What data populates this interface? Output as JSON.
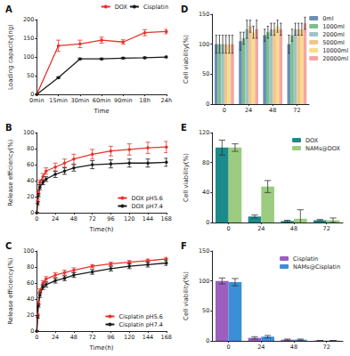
{
  "chart_data": [
    {
      "title": "A",
      "type": "line",
      "x_label": "Time",
      "y_label": "Loading capacity(ng)",
      "categories": [
        "0min",
        "15min",
        "30min",
        "60min",
        "90min",
        "18h",
        "24h"
      ],
      "ylim": [
        0,
        200
      ],
      "yticks": [
        0,
        50,
        100,
        150,
        200
      ],
      "grid": false,
      "legend": "upper right",
      "series": [
        {
          "name": "DOX",
          "color": "#e8322c",
          "marker": "circle",
          "line_style": "solid",
          "values": [
            0,
            130,
            135,
            145,
            140,
            165,
            168
          ],
          "errors": [
            0,
            15,
            10,
            8,
            6,
            8,
            6
          ]
        },
        {
          "name": "Cisplatin",
          "color": "#1a1a1a",
          "marker": "circle",
          "line_style": "solid",
          "values": [
            0,
            45,
            95,
            95,
            97,
            98,
            100
          ],
          "errors": [
            0,
            2,
            2,
            2,
            2,
            2,
            2
          ]
        }
      ]
    },
    {
      "title": "D",
      "type": "bar",
      "y_label": "Cell viability(%)",
      "categories": [
        "0",
        "24",
        "48",
        "72"
      ],
      "ylim": [
        0,
        150
      ],
      "yticks": [
        0,
        50,
        100,
        150
      ],
      "grid": false,
      "legend": "right",
      "series": [
        {
          "name": "0ml",
          "color": "#6a8fb5",
          "values": [
            100,
            105,
            115,
            100
          ],
          "errors": [
            15,
            15,
            10,
            15
          ]
        },
        {
          "name": "1000ml",
          "color": "#7cbf8a",
          "values": [
            100,
            110,
            120,
            115
          ],
          "errors": [
            15,
            10,
            10,
            10
          ]
        },
        {
          "name": "2000ml",
          "color": "#9fc3c6",
          "values": [
            100,
            125,
            125,
            125
          ],
          "errors": [
            15,
            15,
            10,
            10
          ]
        },
        {
          "name": "5000ml",
          "color": "#f2c48d",
          "values": [
            100,
            130,
            125,
            125
          ],
          "errors": [
            15,
            10,
            10,
            10
          ]
        },
        {
          "name": "10000ml",
          "color": "#f7dc8a",
          "values": [
            100,
            120,
            130,
            125
          ],
          "errors": [
            15,
            10,
            10,
            10
          ]
        },
        {
          "name": "20000ml",
          "color": "#f4a6a6",
          "values": [
            100,
            125,
            125,
            135
          ],
          "errors": [
            15,
            15,
            10,
            10
          ]
        }
      ]
    },
    {
      "title": "B",
      "type": "line",
      "x_label": "Time(h)",
      "y_label": "Release efficiency(%)",
      "x": [
        0,
        1,
        2,
        4,
        8,
        12,
        24,
        36,
        48,
        72,
        96,
        120,
        144,
        168
      ],
      "xlim": [
        0,
        168
      ],
      "xticks": [
        0,
        24,
        48,
        72,
        96,
        120,
        144,
        168
      ],
      "ylim": [
        0,
        100
      ],
      "yticks": [
        0,
        20,
        40,
        60,
        80,
        100
      ],
      "grid": false,
      "legend": "lower right",
      "series": [
        {
          "name": "DOX pH5.6",
          "color": "#e8322c",
          "marker": "circle",
          "line_style": "solid",
          "values": [
            0,
            15,
            25,
            38,
            45,
            52,
            57,
            62,
            67,
            73,
            77,
            79,
            81,
            82
          ],
          "errors": [
            0,
            2,
            3,
            3,
            4,
            4,
            5,
            5,
            6,
            6,
            6,
            7,
            7,
            7
          ]
        },
        {
          "name": "DOX pH7.4",
          "color": "#1a1a1a",
          "marker": "circle",
          "line_style": "solid",
          "values": [
            0,
            12,
            22,
            32,
            38,
            42,
            48,
            52,
            56,
            60,
            61,
            62,
            62,
            63
          ],
          "errors": [
            0,
            2,
            2,
            3,
            3,
            3,
            4,
            4,
            4,
            5,
            5,
            5,
            5,
            5
          ]
        }
      ]
    },
    {
      "title": "E",
      "type": "bar",
      "y_label": "Cell viability(%)",
      "categories": [
        "0",
        "24",
        "48",
        "72"
      ],
      "ylim": [
        0,
        120
      ],
      "yticks": [
        0,
        40,
        80,
        120
      ],
      "grid": false,
      "legend": "upper right",
      "series": [
        {
          "name": "DOX",
          "color": "#1b8a8a",
          "values": [
            100,
            8,
            2,
            3
          ],
          "errors": [
            10,
            2,
            1,
            1
          ]
        },
        {
          "name": "NAMs@DOX",
          "color": "#9ccc80",
          "values": [
            100,
            48,
            5,
            3
          ],
          "errors": [
            5,
            8,
            12,
            3
          ]
        }
      ]
    },
    {
      "title": "C",
      "type": "line",
      "x_label": "Time(h)",
      "y_label": "Release efficiency(%)",
      "x": [
        0,
        1,
        2,
        4,
        8,
        12,
        24,
        36,
        48,
        72,
        96,
        120,
        144,
        168
      ],
      "xlim": [
        0,
        168
      ],
      "xticks": [
        0,
        24,
        48,
        72,
        96,
        120,
        144,
        168
      ],
      "ylim": [
        0,
        100
      ],
      "yticks": [
        0,
        20,
        40,
        60,
        80,
        100
      ],
      "grid": false,
      "legend": "lower right",
      "series": [
        {
          "name": "Cisplatin pH5.6",
          "color": "#e8322c",
          "marker": "circle",
          "line_style": "solid",
          "values": [
            0,
            20,
            35,
            50,
            60,
            65,
            70,
            73,
            76,
            81,
            84,
            86,
            88,
            90
          ],
          "errors": [
            0,
            2,
            2,
            3,
            3,
            3,
            3,
            3,
            3,
            2,
            2,
            2,
            2,
            2
          ]
        },
        {
          "name": "Cisplatin pH7.4",
          "color": "#1a1a1a",
          "marker": "circle",
          "line_style": "solid",
          "values": [
            0,
            18,
            32,
            45,
            55,
            58,
            63,
            66,
            70,
            74,
            78,
            81,
            83,
            85
          ],
          "errors": [
            0,
            2,
            2,
            3,
            3,
            3,
            3,
            3,
            3,
            3,
            3,
            3,
            3,
            3
          ]
        }
      ]
    },
    {
      "title": "F",
      "type": "bar",
      "y_label": "Cell viability(%)",
      "categories": [
        "0",
        "24",
        "48",
        "72"
      ],
      "ylim": [
        0,
        150
      ],
      "yticks": [
        0,
        50,
        100,
        150
      ],
      "grid": false,
      "legend": "upper right",
      "series": [
        {
          "name": "Cisplatin",
          "color": "#9b5fc0",
          "values": [
            100,
            5,
            2,
            0.5
          ],
          "errors": [
            5,
            2,
            1,
            0
          ]
        },
        {
          "name": "NAMs@Cisplatin",
          "color": "#3a8fd6",
          "values": [
            98,
            7,
            2,
            0.5
          ],
          "errors": [
            6,
            2,
            1,
            0
          ]
        }
      ]
    }
  ]
}
